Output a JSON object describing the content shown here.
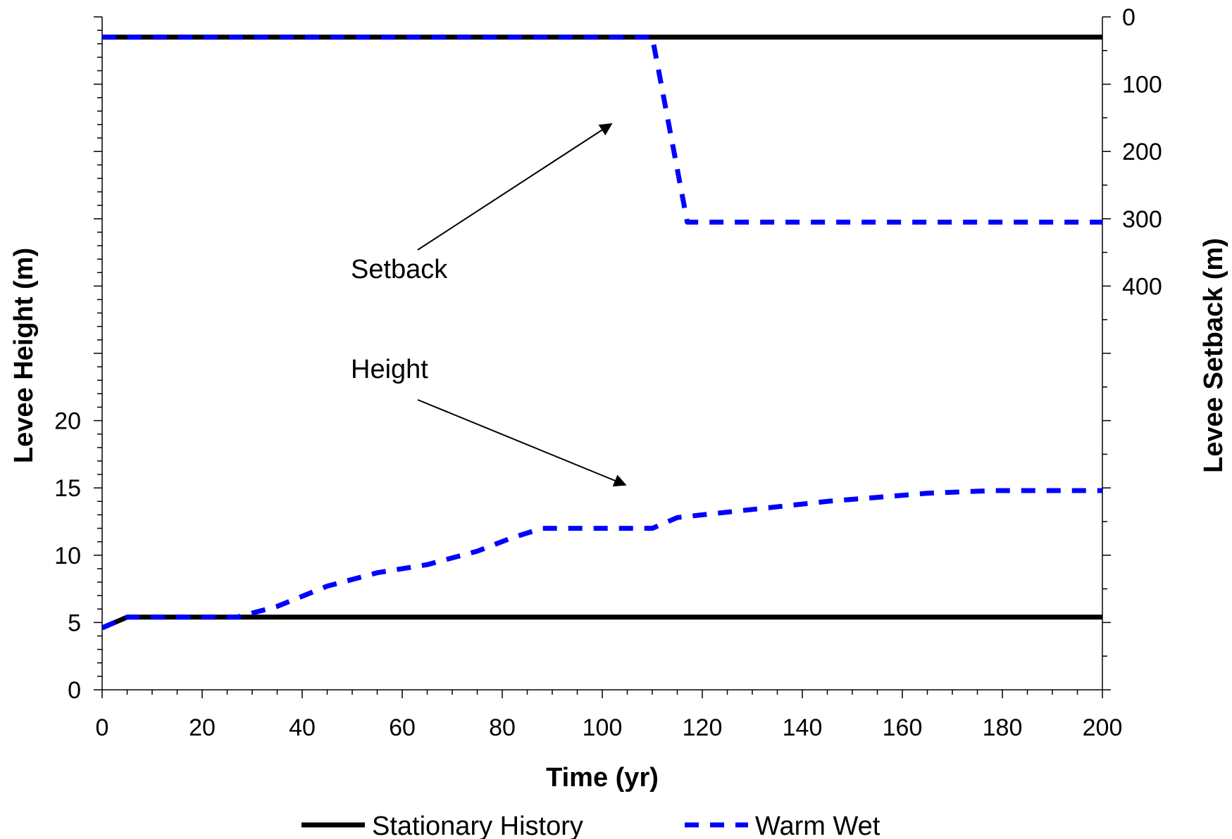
{
  "chart_data": {
    "type": "line",
    "title": "",
    "xlabel": "Time (yr)",
    "ylabel_left": "Levee Height (m)",
    "ylabel_right": "Levee Setback (m)",
    "x_ticks": [
      "0",
      "20",
      "40",
      "60",
      "80",
      "100",
      "120",
      "140",
      "160",
      "180",
      "200"
    ],
    "y_left_ticks": [
      "0",
      "5",
      "10",
      "15",
      "20"
    ],
    "y_right_ticks": [
      "0",
      "100",
      "200",
      "300",
      "400"
    ],
    "xlim": [
      0,
      200
    ],
    "ylim_left": [
      0,
      50
    ],
    "ylim_right": [
      0,
      1000
    ],
    "right_axis_inverted": true,
    "grid": false,
    "legend_position": "bottom",
    "series": [
      {
        "name": "Stationary History",
        "color": "#000000",
        "style": "solid",
        "axis": "left",
        "x": [
          0,
          5,
          200
        ],
        "y": [
          4.6,
          5.4,
          5.4
        ]
      },
      {
        "name": "Warm Wet",
        "color": "#0000ff",
        "style": "dashed",
        "axis": "left",
        "x": [
          0,
          5,
          27,
          35,
          45,
          55,
          65,
          75,
          82,
          88,
          110,
          115,
          130,
          145,
          155,
          165,
          178,
          200
        ],
        "y": [
          4.6,
          5.4,
          5.4,
          6.2,
          7.7,
          8.7,
          9.3,
          10.3,
          11.3,
          12.0,
          12.0,
          12.8,
          13.4,
          14.0,
          14.3,
          14.6,
          14.8,
          14.8
        ]
      },
      {
        "name": "Stationary History",
        "color": "#000000",
        "style": "solid",
        "axis": "right",
        "x": [
          0,
          200
        ],
        "y": [
          30,
          30
        ]
      },
      {
        "name": "Warm Wet",
        "color": "#0000ff",
        "style": "dashed",
        "axis": "right",
        "x": [
          0,
          110,
          117,
          200
        ],
        "y": [
          30,
          30,
          305,
          305
        ]
      }
    ],
    "annotations": [
      {
        "text": "Setback"
      },
      {
        "text": "Height"
      }
    ],
    "legend": [
      {
        "label": "Stationary History",
        "color": "#000000",
        "style": "solid"
      },
      {
        "label": "Warm Wet",
        "color": "#0000ff",
        "style": "dashed"
      }
    ]
  }
}
